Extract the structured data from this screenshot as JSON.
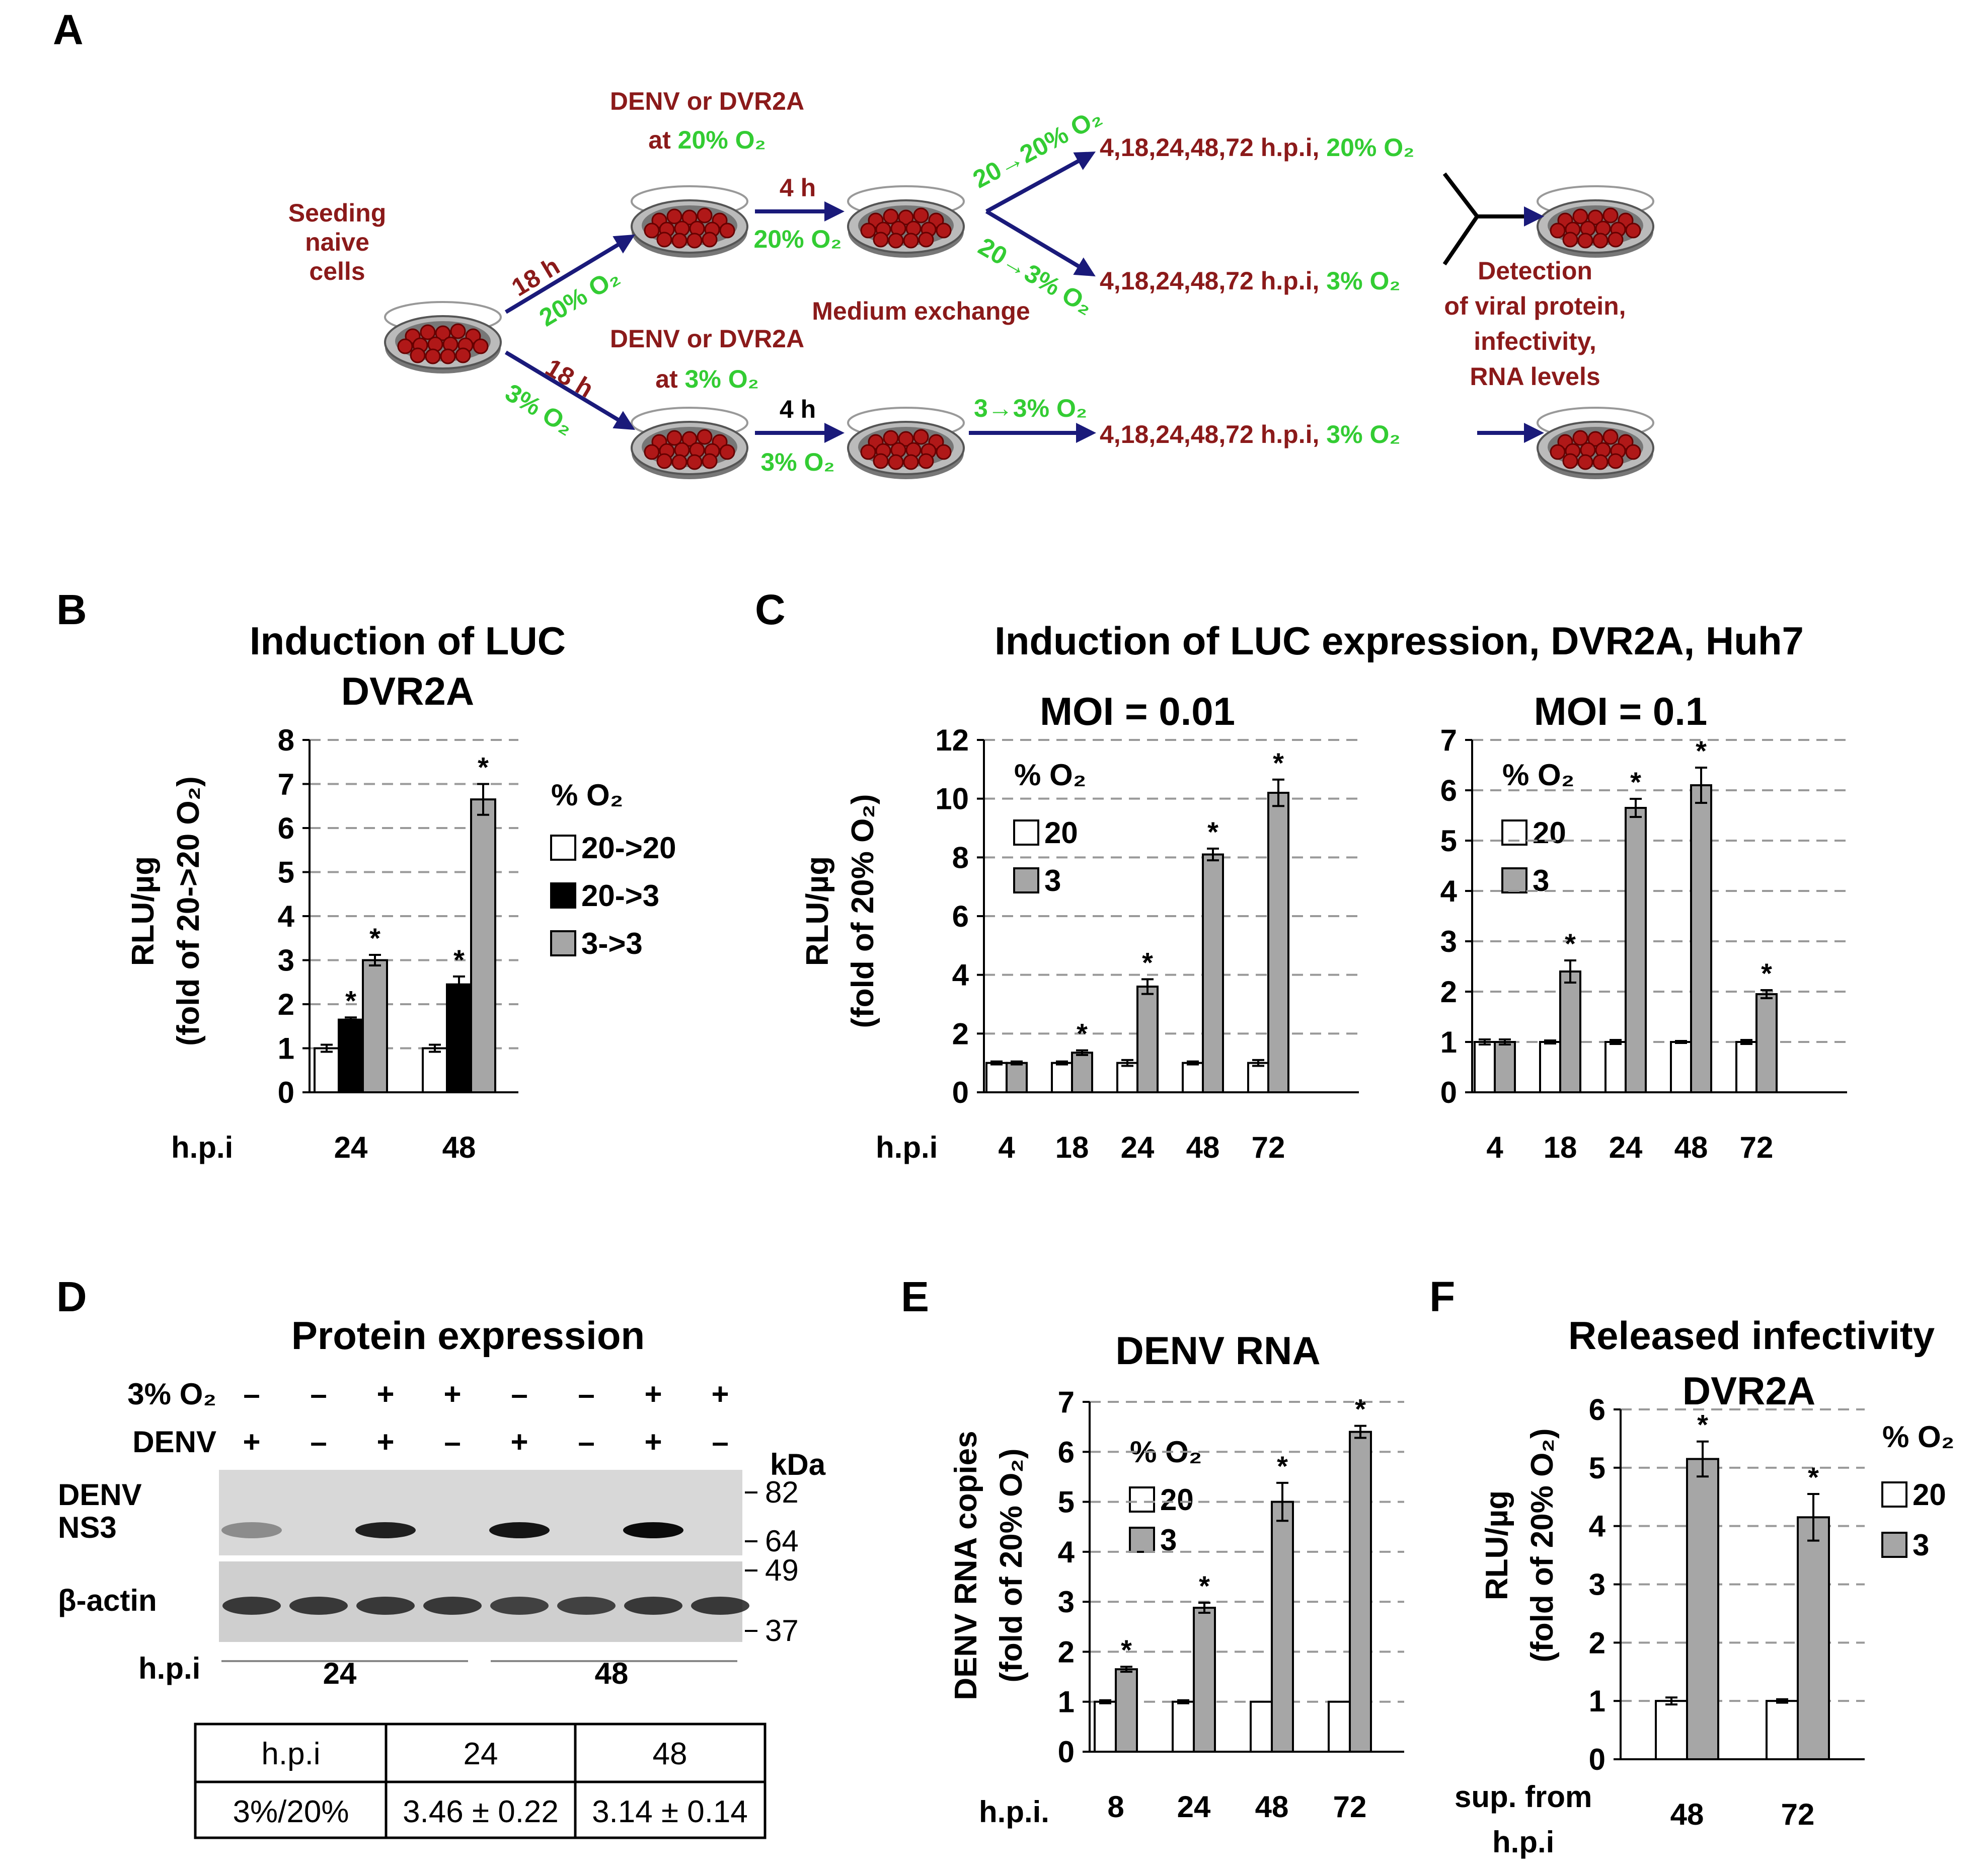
{
  "panels": {
    "a": "A",
    "b": "B",
    "c": "C",
    "d": "D",
    "e": "E",
    "f": "F"
  },
  "scheme": {
    "seeding": [
      "Seeding",
      "naive",
      "cells"
    ],
    "arrow_18h": "18 h",
    "o2_20": "20% O₂",
    "o2_3": "3% O₂",
    "denv_or": "DENV or DVR2A",
    "at_20": [
      "at ",
      "20% O₂"
    ],
    "at_3": [
      "at ",
      "3% O₂"
    ],
    "four_h": "4 h",
    "medium_exchange": "Medium exchange",
    "shift_20_20": "20→20% O₂",
    "shift_20_3": "20→3% O₂",
    "shift_3_3": "3→3% O₂",
    "timepoints": "4,18,24,48,72 h.p.i, ",
    "detection": [
      "Detection",
      "of viral protein,",
      "infectivity,",
      "RNA levels"
    ]
  },
  "colors": {
    "white_bar": "#ffffff",
    "black_bar": "#000000",
    "gray_bar": "#a6a6a6",
    "dark_red": "#8b1a1a",
    "green": "#33cc33",
    "navy": "#1a1a7a"
  },
  "chart_data": [
    {
      "id": "B",
      "type": "bar",
      "title": "Induction of LUC",
      "subtitle": "DVR2A",
      "ylabel": "RLU/µg",
      "ylabel2": "(fold of 20->20 O₂)",
      "xlabel": "h.p.i",
      "categories": [
        "24",
        "48"
      ],
      "ylim": [
        0,
        8
      ],
      "yticks": [
        0,
        1,
        2,
        3,
        4,
        5,
        6,
        7,
        8
      ],
      "legend_title": "% O₂",
      "series": [
        {
          "name": "20->20",
          "color": "#ffffff",
          "values": [
            1.0,
            1.0
          ],
          "err": [
            0.08,
            0.08
          ],
          "sig": [
            false,
            false
          ]
        },
        {
          "name": "20->3",
          "color": "#000000",
          "values": [
            1.65,
            2.45
          ],
          "err": [
            0.05,
            0.18
          ],
          "sig": [
            true,
            true
          ]
        },
        {
          "name": "3->3",
          "color": "#a6a6a6",
          "values": [
            3.0,
            6.65
          ],
          "err": [
            0.12,
            0.35
          ],
          "sig": [
            true,
            true
          ]
        }
      ]
    },
    {
      "id": "C1",
      "type": "bar",
      "title": "Induction of LUC expression, DVR2A, Huh7",
      "subtitle": "MOI = 0.01",
      "ylabel": "RLU/µg",
      "ylabel2": "(fold of 20% O₂)",
      "xlabel": "h.p.i",
      "categories": [
        "4",
        "18",
        "24",
        "48",
        "72"
      ],
      "ylim": [
        0,
        12
      ],
      "yticks": [
        0,
        2,
        4,
        6,
        8,
        10,
        12
      ],
      "legend_title": "% O₂",
      "series": [
        {
          "name": "20",
          "color": "#ffffff",
          "values": [
            1.0,
            1.0,
            1.0,
            1.0,
            1.0
          ],
          "err": [
            0.05,
            0.05,
            0.1,
            0.05,
            0.1
          ],
          "sig": [
            false,
            false,
            false,
            false,
            false
          ]
        },
        {
          "name": "3",
          "color": "#a6a6a6",
          "values": [
            1.0,
            1.35,
            3.6,
            8.1,
            10.2
          ],
          "err": [
            0.05,
            0.08,
            0.25,
            0.2,
            0.45
          ],
          "sig": [
            false,
            true,
            true,
            true,
            true
          ]
        }
      ]
    },
    {
      "id": "C2",
      "type": "bar",
      "subtitle": "MOI = 0.1",
      "xlabel": "",
      "categories": [
        "4",
        "18",
        "24",
        "48",
        "72"
      ],
      "ylim": [
        0,
        7
      ],
      "yticks": [
        0,
        1,
        2,
        3,
        4,
        5,
        6,
        7
      ],
      "legend_title": "% O₂",
      "series": [
        {
          "name": "20",
          "color": "#ffffff",
          "values": [
            1.0,
            1.0,
            1.0,
            1.0,
            1.0
          ],
          "err": [
            0.05,
            0.03,
            0.04,
            0.02,
            0.04
          ],
          "sig": [
            false,
            false,
            false,
            false,
            false
          ]
        },
        {
          "name": "3",
          "color": "#a6a6a6",
          "values": [
            1.0,
            2.4,
            5.65,
            6.1,
            1.95
          ],
          "err": [
            0.05,
            0.22,
            0.18,
            0.35,
            0.08
          ],
          "sig": [
            false,
            true,
            true,
            true,
            true
          ]
        }
      ]
    },
    {
      "id": "E",
      "type": "bar",
      "title": "DENV RNA",
      "ylabel": "DENV RNA copies",
      "ylabel2": "(fold of 20% O₂)",
      "xlabel": "h.p.i.",
      "categories": [
        "8",
        "24",
        "48",
        "72"
      ],
      "ylim": [
        0,
        7
      ],
      "yticks": [
        0,
        1,
        2,
        3,
        4,
        5,
        6,
        7
      ],
      "legend_title": "% O₂",
      "series": [
        {
          "name": "20",
          "color": "#ffffff",
          "values": [
            1.0,
            1.0,
            1.0,
            1.0
          ],
          "err": [
            0.03,
            0.03,
            0.0,
            0.0
          ],
          "sig": [
            false,
            false,
            false,
            false
          ]
        },
        {
          "name": "3",
          "color": "#a6a6a6",
          "values": [
            1.65,
            2.88,
            5.0,
            6.4
          ],
          "err": [
            0.05,
            0.1,
            0.38,
            0.12
          ],
          "sig": [
            true,
            true,
            true,
            true
          ]
        }
      ]
    },
    {
      "id": "F",
      "type": "bar",
      "title": "Released infectivity",
      "subtitle": "DVR2A",
      "ylabel": "RLU/µg",
      "ylabel2": "(fold  of 20% O₂)",
      "xlabel": [
        "sup. from",
        "h.p.i"
      ],
      "categories": [
        "48",
        "72"
      ],
      "ylim": [
        0,
        6
      ],
      "yticks": [
        0,
        1,
        2,
        3,
        4,
        5,
        6
      ],
      "legend_title": "% O₂",
      "series": [
        {
          "name": "20",
          "color": "#ffffff",
          "values": [
            1.0,
            1.0
          ],
          "err": [
            0.06,
            0.03
          ],
          "sig": [
            false,
            false
          ]
        },
        {
          "name": "3",
          "color": "#a6a6a6",
          "values": [
            5.15,
            4.15
          ],
          "err": [
            0.3,
            0.4
          ],
          "sig": [
            true,
            true
          ]
        }
      ]
    }
  ],
  "blot": {
    "title": "Protein expression",
    "row_o2_label": "3% O₂",
    "row_denv_label": "DENV",
    "o2": [
      "–",
      "–",
      "+",
      "+",
      "–",
      "–",
      "+",
      "+"
    ],
    "denv": [
      "+",
      "–",
      "+",
      "–",
      "+",
      "–",
      "+",
      "–"
    ],
    "kda": "kDa",
    "markers": [
      "82",
      "64",
      "49",
      "37"
    ],
    "band_labels": [
      "DENV",
      "NS3",
      "β-actin"
    ],
    "hpi_label": "h.p.i",
    "groups": [
      "24",
      "48"
    ],
    "ns3_intensity": [
      0.35,
      0,
      0.85,
      0,
      0.9,
      0,
      0.95,
      0
    ],
    "actin_intensity": [
      0.8,
      0.8,
      0.8,
      0.8,
      0.75,
      0.75,
      0.8,
      0.8
    ]
  },
  "table": {
    "header": [
      "h.p.i",
      "24",
      "48"
    ],
    "row": [
      "3%/20%",
      "3.46 ± 0.22",
      "3.14 ± 0.14"
    ]
  },
  "star": "*"
}
